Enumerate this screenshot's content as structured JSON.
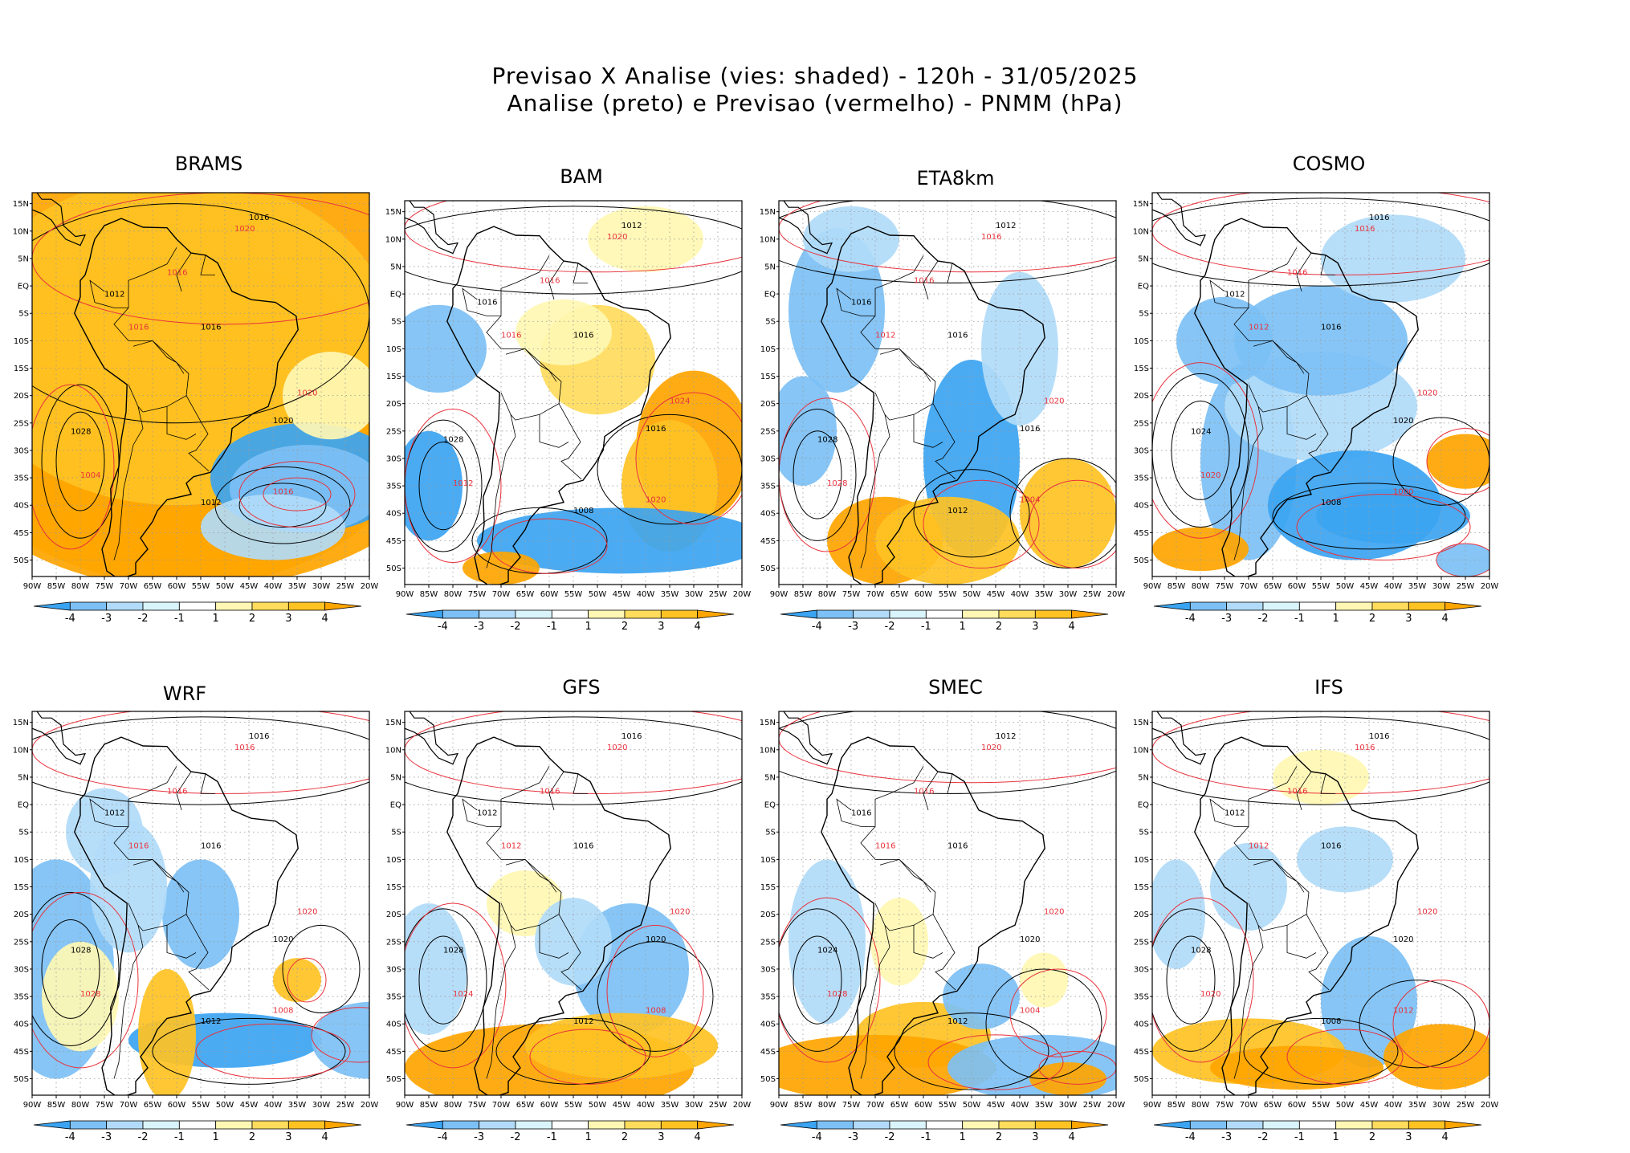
{
  "title": {
    "line1": "Previsao X Analise (vies: shaded) - 120h - 31/05/2025",
    "line2": "Analise (preto) e Previsao (vermelho) - PNMM (hPa)"
  },
  "lon_labels": [
    "90W",
    "85W",
    "80W",
    "75W",
    "70W",
    "65W",
    "60W",
    "55W",
    "50W",
    "45W",
    "40W",
    "35W",
    "30W",
    "25W",
    "20W"
  ],
  "lat_labels": [
    "15N",
    "10N",
    "5N",
    "EQ",
    "5S",
    "10S",
    "15S",
    "20S",
    "25S",
    "30S",
    "35S",
    "40S",
    "45S",
    "50S"
  ],
  "colorbar": {
    "labels": [
      "-4",
      "-3",
      "-2",
      "-1",
      "1",
      "2",
      "3",
      "4"
    ],
    "colors": [
      "#3ba4f2",
      "#7cc0f5",
      "#b1dbf8",
      "#d9f4fb",
      "#ffffff",
      "#fff7b3",
      "#ffdc5c",
      "#ffc223",
      "#ffa500"
    ]
  },
  "colors": {
    "analysis_isobar": "#000000",
    "forecast_isobar": "#e8323c",
    "grid": "#9a9a9a"
  },
  "panels": [
    {
      "name": "BRAMS",
      "labels": {
        "analysis": [
          "1012",
          "1016",
          "1016",
          "1020",
          "1028",
          "1012"
        ],
        "forecast": [
          "1020",
          "1016",
          "1016",
          "1020",
          "1004",
          "1016"
        ]
      }
    },
    {
      "name": "BAM",
      "labels": {
        "analysis": [
          "1016",
          "1016",
          "1012",
          "1016",
          "1028",
          "1008"
        ],
        "forecast": [
          "1020",
          "1016",
          "1016",
          "1024",
          "1012",
          "1020"
        ]
      }
    },
    {
      "name": "ETA8km",
      "labels": {
        "analysis": [
          "1016",
          "1016",
          "1012",
          "1016",
          "1028",
          "1012"
        ],
        "forecast": [
          "1016",
          "1016",
          "1012",
          "1020",
          "1028",
          "1004"
        ]
      }
    },
    {
      "name": "COSMO",
      "labels": {
        "analysis": [
          "1012",
          "1016",
          "1016",
          "1020",
          "1024",
          "1008"
        ],
        "forecast": [
          "1016",
          "1016",
          "1012",
          "1020",
          "1020",
          "1000"
        ]
      }
    },
    {
      "name": "WRF",
      "labels": {
        "analysis": [
          "1012",
          "1016",
          "1016",
          "1020",
          "1028",
          "1012"
        ],
        "forecast": [
          "1016",
          "1016",
          "1016",
          "1020",
          "1028",
          "1008"
        ]
      }
    },
    {
      "name": "GFS",
      "labels": {
        "analysis": [
          "1012",
          "1016",
          "1016",
          "1020",
          "1028",
          "1012"
        ],
        "forecast": [
          "1020",
          "1016",
          "1012",
          "1020",
          "1024",
          "1008"
        ]
      }
    },
    {
      "name": "SMEC",
      "labels": {
        "analysis": [
          "1016",
          "1016",
          "1012",
          "1020",
          "1024",
          "1012"
        ],
        "forecast": [
          "1020",
          "1016",
          "1016",
          "1020",
          "1028",
          "1004"
        ]
      }
    },
    {
      "name": "IFS",
      "labels": {
        "analysis": [
          "1012",
          "1016",
          "1016",
          "1020",
          "1028",
          "1008"
        ],
        "forecast": [
          "1016",
          "1016",
          "1012",
          "1020",
          "1020",
          "1012"
        ]
      }
    }
  ]
}
